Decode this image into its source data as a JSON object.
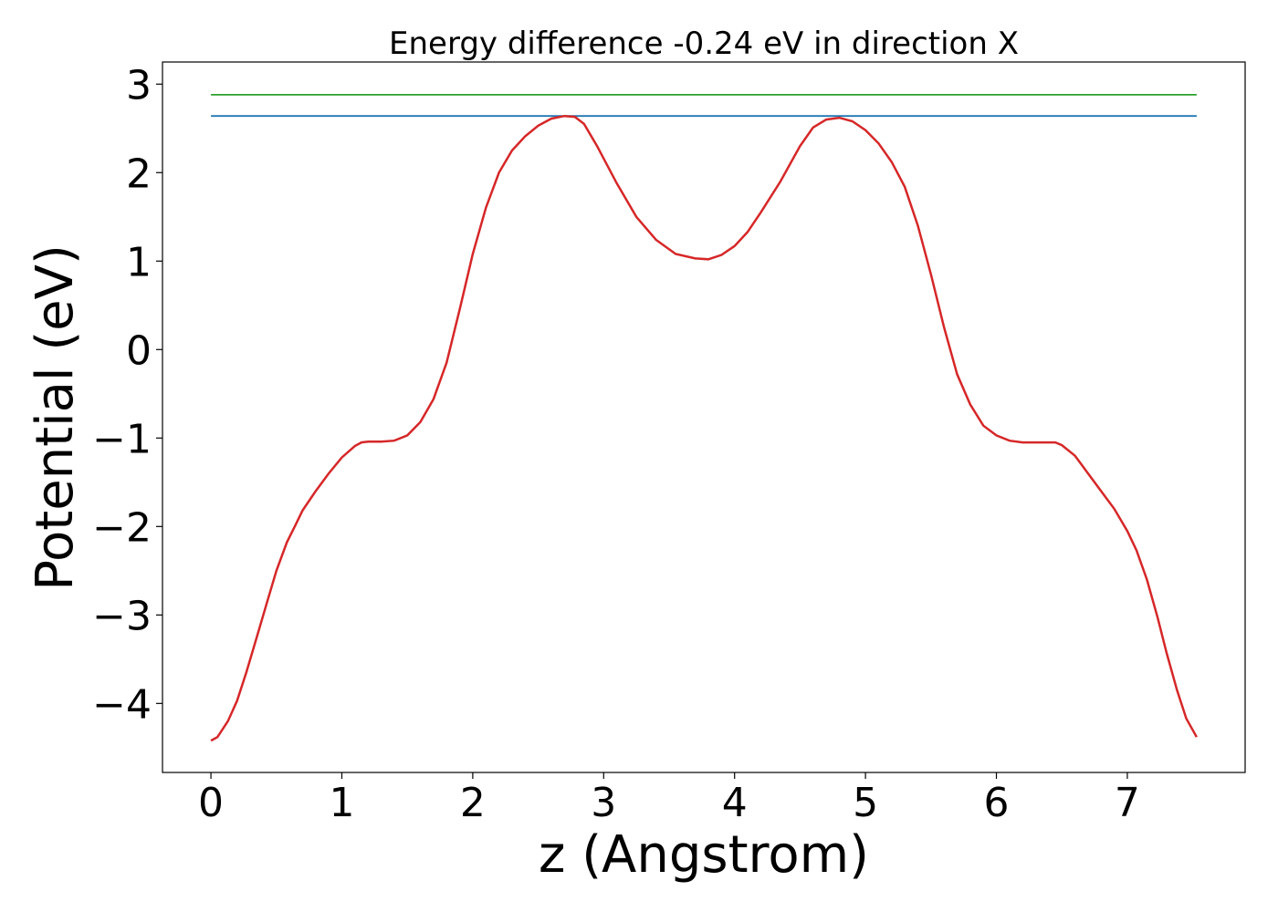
{
  "chart_data": {
    "type": "line",
    "title": "Energy difference -0.24 eV in direction X",
    "xlabel": "z (Angstrom)",
    "ylabel": "Potential (eV)",
    "xlim": [
      -0.37,
      7.9
    ],
    "ylim": [
      -4.78,
      3.25
    ],
    "xticks": [
      0,
      1,
      2,
      3,
      4,
      5,
      6,
      7
    ],
    "yticks": [
      -4,
      -3,
      -2,
      -1,
      0,
      1,
      2,
      3
    ],
    "xtick_labels": [
      "0",
      "1",
      "2",
      "3",
      "4",
      "5",
      "6",
      "7"
    ],
    "ytick_labels": [
      "−4",
      "−3",
      "−2",
      "−1",
      "0",
      "1",
      "2",
      "3"
    ],
    "grid": false,
    "legend": "none",
    "series": [
      {
        "color": "#2ca02c",
        "x": [
          0,
          7.53
        ],
        "y": [
          2.88,
          2.88
        ]
      },
      {
        "color": "#1f77b4",
        "x": [
          0,
          7.53
        ],
        "y": [
          2.64,
          2.64
        ]
      },
      {
        "color": "#d62728",
        "x": [
          0,
          0.05,
          0.13,
          0.2,
          0.27,
          0.35,
          0.43,
          0.5,
          0.58,
          0.65,
          0.7,
          0.8,
          0.9,
          1.0,
          1.1,
          1.15,
          1.2,
          1.3,
          1.4,
          1.5,
          1.6,
          1.7,
          1.8,
          1.9,
          2.0,
          2.1,
          2.2,
          2.3,
          2.4,
          2.5,
          2.6,
          2.7,
          2.78,
          2.85,
          2.95,
          3.1,
          3.25,
          3.4,
          3.55,
          3.7,
          3.8,
          3.9,
          4.0,
          4.1,
          4.2,
          4.35,
          4.5,
          4.6,
          4.7,
          4.8,
          4.9,
          5.0,
          5.1,
          5.2,
          5.3,
          5.4,
          5.5,
          5.6,
          5.7,
          5.8,
          5.9,
          6.0,
          6.1,
          6.2,
          6.3,
          6.4,
          6.45,
          6.5,
          6.6,
          6.7,
          6.8,
          6.9,
          7.0,
          7.07,
          7.15,
          7.23,
          7.3,
          7.38,
          7.45,
          7.53
        ],
        "y": [
          -4.42,
          -4.38,
          -4.2,
          -3.97,
          -3.65,
          -3.25,
          -2.85,
          -2.5,
          -2.18,
          -1.97,
          -1.82,
          -1.6,
          -1.4,
          -1.22,
          -1.09,
          -1.05,
          -1.04,
          -1.04,
          -1.03,
          -0.97,
          -0.82,
          -0.56,
          -0.15,
          0.45,
          1.08,
          1.6,
          2.0,
          2.25,
          2.41,
          2.53,
          2.61,
          2.64,
          2.63,
          2.55,
          2.3,
          1.88,
          1.5,
          1.24,
          1.08,
          1.03,
          1.02,
          1.07,
          1.17,
          1.33,
          1.55,
          1.9,
          2.3,
          2.51,
          2.6,
          2.62,
          2.58,
          2.48,
          2.33,
          2.12,
          1.84,
          1.4,
          0.85,
          0.25,
          -0.28,
          -0.62,
          -0.86,
          -0.97,
          -1.03,
          -1.05,
          -1.05,
          -1.05,
          -1.05,
          -1.08,
          -1.2,
          -1.4,
          -1.6,
          -1.8,
          -2.05,
          -2.27,
          -2.6,
          -3.02,
          -3.43,
          -3.85,
          -4.17,
          -4.38
        ]
      }
    ]
  }
}
